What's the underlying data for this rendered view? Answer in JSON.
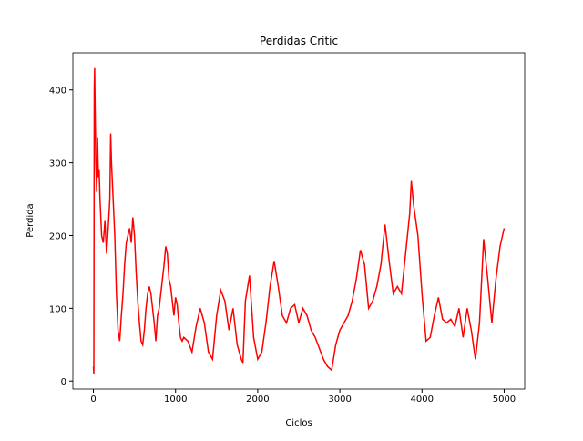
{
  "chart_data": {
    "type": "line",
    "title": "Perdidas Critic",
    "x_label": "Ciclos",
    "y_label": "Perdida",
    "x": [
      0,
      5,
      10,
      15,
      20,
      30,
      40,
      50,
      60,
      70,
      80,
      100,
      120,
      140,
      160,
      180,
      200,
      210,
      220,
      240,
      260,
      280,
      300,
      320,
      340,
      360,
      380,
      400,
      420,
      440,
      460,
      480,
      500,
      520,
      540,
      560,
      580,
      600,
      620,
      640,
      660,
      680,
      700,
      720,
      740,
      760,
      780,
      800,
      820,
      840,
      860,
      880,
      900,
      920,
      940,
      960,
      980,
      1000,
      1020,
      1040,
      1060,
      1080,
      1100,
      1150,
      1200,
      1250,
      1300,
      1350,
      1400,
      1450,
      1500,
      1550,
      1600,
      1650,
      1700,
      1750,
      1800,
      1820,
      1850,
      1900,
      1950,
      2000,
      2050,
      2100,
      2150,
      2200,
      2250,
      2300,
      2350,
      2400,
      2450,
      2500,
      2550,
      2600,
      2650,
      2700,
      2750,
      2800,
      2850,
      2900,
      2950,
      3000,
      3050,
      3100,
      3150,
      3200,
      3250,
      3300,
      3350,
      3400,
      3450,
      3500,
      3550,
      3600,
      3650,
      3700,
      3750,
      3800,
      3850,
      3870,
      3900,
      3950,
      4000,
      4050,
      4100,
      4150,
      4200,
      4250,
      4300,
      4350,
      4400,
      4450,
      4500,
      4550,
      4600,
      4650,
      4700,
      4750,
      4800,
      4850,
      4900,
      4950,
      5000
    ],
    "series": [
      {
        "name": "Perdida",
        "color": "#ff0000",
        "values": [
          20,
          10,
          400,
          430,
          380,
          300,
          260,
          335,
          280,
          290,
          250,
          200,
          190,
          220,
          175,
          210,
          250,
          340,
          300,
          250,
          200,
          120,
          70,
          55,
          90,
          120,
          160,
          190,
          200,
          210,
          190,
          225,
          200,
          150,
          110,
          80,
          55,
          50,
          70,
          100,
          120,
          130,
          120,
          100,
          80,
          55,
          90,
          100,
          120,
          140,
          160,
          185,
          175,
          140,
          130,
          110,
          90,
          115,
          105,
          80,
          60,
          55,
          60,
          55,
          40,
          75,
          100,
          80,
          40,
          30,
          90,
          125,
          110,
          70,
          100,
          50,
          30,
          25,
          110,
          145,
          60,
          30,
          40,
          80,
          130,
          165,
          130,
          90,
          80,
          100,
          105,
          80,
          100,
          90,
          70,
          60,
          45,
          30,
          20,
          15,
          50,
          70,
          80,
          90,
          110,
          140,
          180,
          160,
          100,
          110,
          130,
          160,
          215,
          165,
          120,
          130,
          120,
          175,
          230,
          275,
          240,
          200,
          120,
          55,
          60,
          90,
          115,
          85,
          80,
          85,
          75,
          100,
          60,
          100,
          70,
          30,
          80,
          195,
          140,
          80,
          140,
          185,
          210
        ]
      }
    ],
    "xlim": [
      -250,
      5250
    ],
    "ylim": [
      -11,
      451
    ],
    "xticks": [
      0,
      1000,
      2000,
      3000,
      4000,
      5000
    ],
    "yticks": [
      0,
      100,
      200,
      300,
      400
    ]
  }
}
